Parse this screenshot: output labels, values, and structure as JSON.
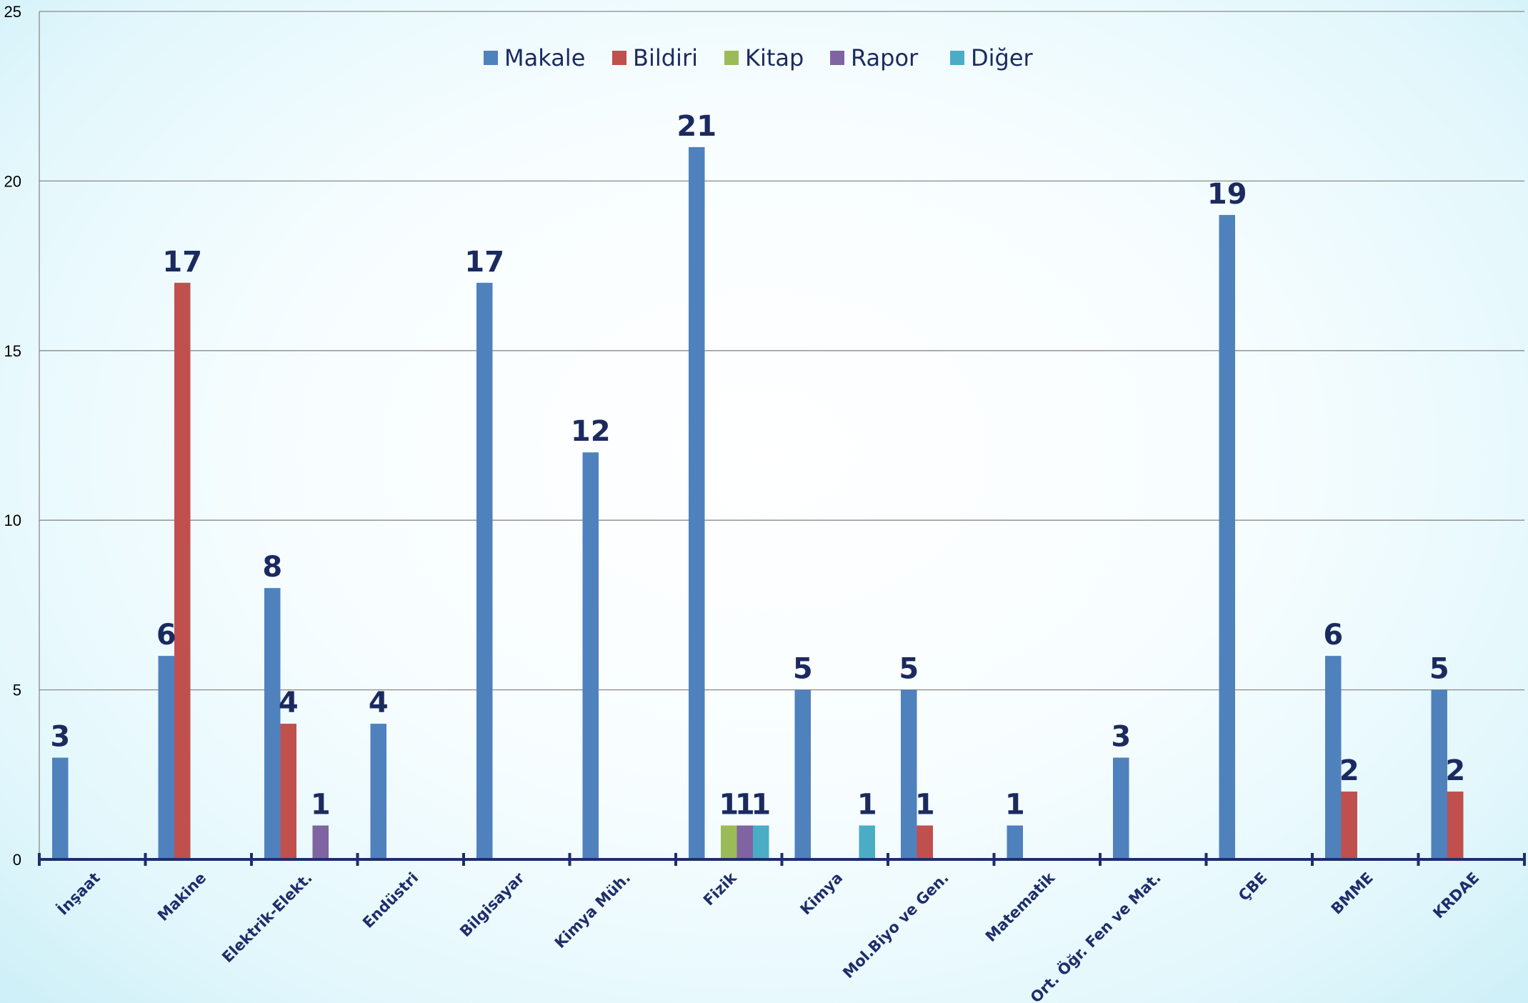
{
  "chart_data": {
    "type": "bar",
    "categories": [
      "İnşaat",
      "Makine",
      "Elektrik-Elekt.",
      "Endüstri",
      "Bilgisayar",
      "Kimya Müh.",
      "Fizik",
      "Kimya",
      "Mol.Biyo ve Gen.",
      "Matematik",
      "Ort. Öğr. Fen ve Mat.",
      "ÇBE",
      "BMME",
      "KRDAE"
    ],
    "series": [
      {
        "name": "Makale",
        "color": "#4f81bd",
        "values": [
          3,
          6,
          8,
          4,
          17,
          12,
          21,
          5,
          5,
          1,
          3,
          19,
          6,
          5
        ]
      },
      {
        "name": "Bildiri",
        "color": "#c0504d",
        "values": [
          0,
          17,
          4,
          0,
          0,
          0,
          0,
          0,
          1,
          0,
          0,
          0,
          2,
          2
        ]
      },
      {
        "name": "Kitap",
        "color": "#9bbb59",
        "values": [
          0,
          0,
          0,
          0,
          0,
          0,
          1,
          0,
          0,
          0,
          0,
          0,
          0,
          0
        ]
      },
      {
        "name": "Rapor",
        "color": "#8064a2",
        "values": [
          0,
          0,
          1,
          0,
          0,
          0,
          1,
          0,
          0,
          0,
          0,
          0,
          0,
          0
        ]
      },
      {
        "name": "Diğer",
        "color": "#4bacc6",
        "values": [
          0,
          0,
          0,
          0,
          0,
          0,
          1,
          1,
          0,
          0,
          0,
          0,
          0,
          0
        ]
      }
    ],
    "ylim": [
      0,
      25
    ],
    "yticks": [
      0,
      5,
      10,
      15,
      20,
      25
    ],
    "grid": true,
    "legend": "top-center",
    "title": "",
    "xlabel": "",
    "ylabel": ""
  }
}
